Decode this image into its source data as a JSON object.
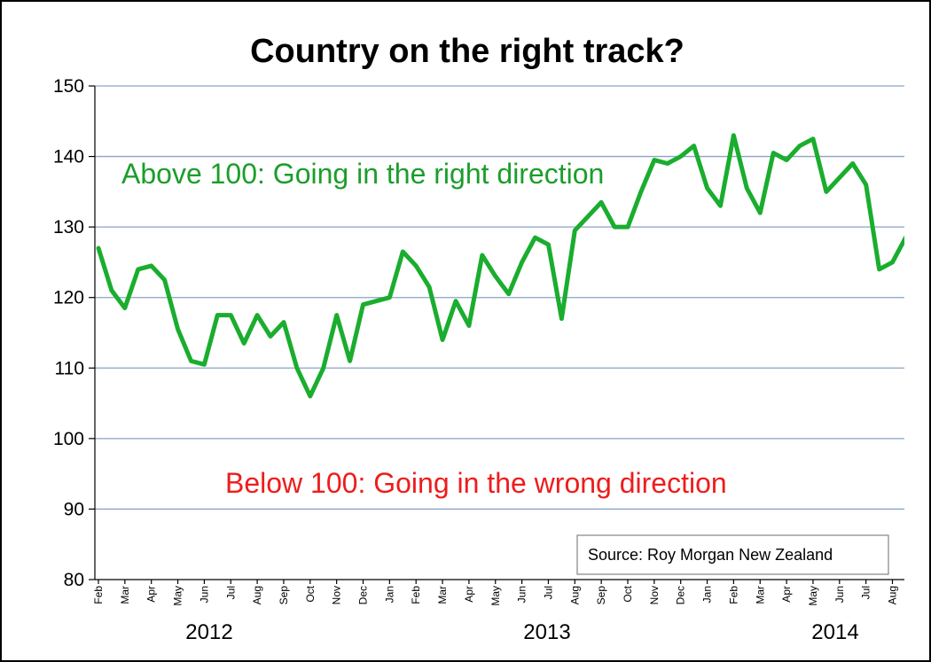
{
  "chart_data": {
    "type": "line",
    "title": "Country on the right track?",
    "ylim": [
      80,
      150
    ],
    "y_ticks": [
      "150",
      "140",
      "130",
      "120",
      "110",
      "100",
      "90",
      "80"
    ],
    "grid": true,
    "x_tick_labels": [
      "Feb",
      "Mar",
      "Apr",
      "May",
      "Jun",
      "Jul",
      "Aug",
      "Sep",
      "Oct",
      "Nov",
      "Dec",
      "Jan",
      "Feb",
      "Mar",
      "Apr",
      "May",
      "Jun",
      "Jul",
      "Aug",
      "Sep",
      "Oct",
      "Nov",
      "Dec",
      "Jan",
      "Feb",
      "Mar",
      "Apr",
      "May",
      "Jun",
      "Jul",
      "Aug"
    ],
    "year_labels": [
      "2012",
      "2013",
      "2014"
    ],
    "annotations": {
      "above": "Above 100: Going in the right direction",
      "below": "Below 100: Going in the wrong direction"
    },
    "source": "Source: Roy Morgan New Zealand",
    "colors": {
      "line": "#1aad2e",
      "above_text": "#1a9e2a",
      "below_text": "#ee1c1c",
      "grid": "#8aa3c8"
    },
    "series": [
      {
        "x": [
          0,
          0.5,
          1,
          1.5,
          2,
          2.5,
          3,
          3.5,
          4,
          4.5,
          5,
          5.5,
          6,
          6.5,
          7,
          7.5,
          8,
          8.5,
          9,
          9.5,
          10,
          10.5,
          11,
          11.5,
          12,
          12.5,
          13,
          13.5,
          14,
          14.5,
          15,
          15.5,
          16,
          16.5,
          17,
          17.5,
          18,
          19,
          19.5,
          20,
          20.5,
          21,
          21.5,
          22,
          22.5,
          23,
          23.5,
          24,
          24.5,
          25,
          25.5,
          26,
          26.5,
          27,
          27.5,
          28,
          28.5,
          29,
          29.5,
          30,
          30.5
        ],
        "values": [
          127,
          121,
          118.5,
          124,
          124.5,
          122.5,
          115.5,
          111,
          110.5,
          117.5,
          117.5,
          113.5,
          117.5,
          114.5,
          116.5,
          110,
          106,
          110,
          117.5,
          111,
          119,
          119.5,
          120,
          126.5,
          124.5,
          121.5,
          114,
          119.5,
          116,
          126,
          123,
          120.5,
          125,
          128.5,
          127.5,
          117,
          129.5,
          133.5,
          130,
          130,
          135,
          139.5,
          139,
          140,
          141.5,
          135.5,
          133,
          143,
          135.5,
          132,
          140.5,
          139.5,
          141.5,
          142.5,
          135,
          137,
          139,
          136,
          124,
          125,
          128.5
        ]
      }
    ]
  }
}
